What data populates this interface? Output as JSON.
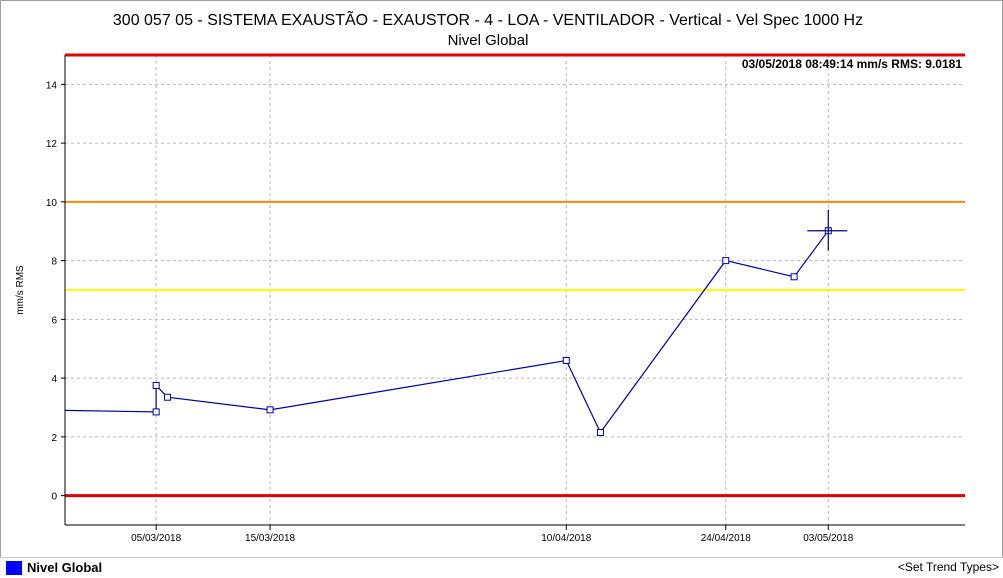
{
  "chart_data": {
    "type": "line",
    "title": "300 057 05 - SISTEMA EXAUSTÃO - EXAUSTOR - 4 - LOA - VENTILADOR - Vertical - Vel Spec 1000 Hz",
    "subtitle": "Nivel Global",
    "ylabel": "mm/s RMS",
    "ylim": [
      -1,
      15
    ],
    "xlim": [
      "2018-02-25",
      "2018-05-15"
    ],
    "yticks": [
      0,
      2,
      4,
      6,
      8,
      10,
      12,
      14
    ],
    "xticks": [
      {
        "date": "2018-03-05",
        "label": "05/03/2018"
      },
      {
        "date": "2018-03-15",
        "label": "15/03/2018"
      },
      {
        "date": "2018-04-10",
        "label": "10/04/2018"
      },
      {
        "date": "2018-04-24",
        "label": "24/04/2018"
      },
      {
        "date": "2018-05-03",
        "label": "03/05/2018"
      }
    ],
    "grid": true,
    "thresholds": [
      {
        "value": 15,
        "color": "#e00000"
      },
      {
        "value": 10,
        "color": "#ff8c00"
      },
      {
        "value": 7,
        "color": "#ffff00"
      },
      {
        "value": 0,
        "color": "#e00000"
      }
    ],
    "series": [
      {
        "name": "Nivel Global",
        "color": "#0000a0",
        "leading_value": 2.9,
        "points": [
          {
            "x": "2018-03-05",
            "y": 2.85
          },
          {
            "x": "2018-03-05",
            "y": 3.75
          },
          {
            "x": "2018-03-06",
            "y": 3.35
          },
          {
            "x": "2018-03-15",
            "y": 2.92
          },
          {
            "x": "2018-04-10",
            "y": 4.6
          },
          {
            "x": "2018-04-13",
            "y": 2.15
          },
          {
            "x": "2018-04-24",
            "y": 8.0
          },
          {
            "x": "2018-04-30",
            "y": 7.45
          },
          {
            "x": "2018-05-03",
            "y": 9.0181
          }
        ]
      }
    ],
    "cursor": {
      "x": "2018-05-03",
      "y": 9.0181
    },
    "cursor_readout": "03/05/2018 08:49:14 mm/s RMS: 9.0181"
  },
  "legend": {
    "label": "Nivel Global",
    "color": "#0000ff"
  },
  "footer": {
    "trend_link": "<Set Trend Types>"
  }
}
